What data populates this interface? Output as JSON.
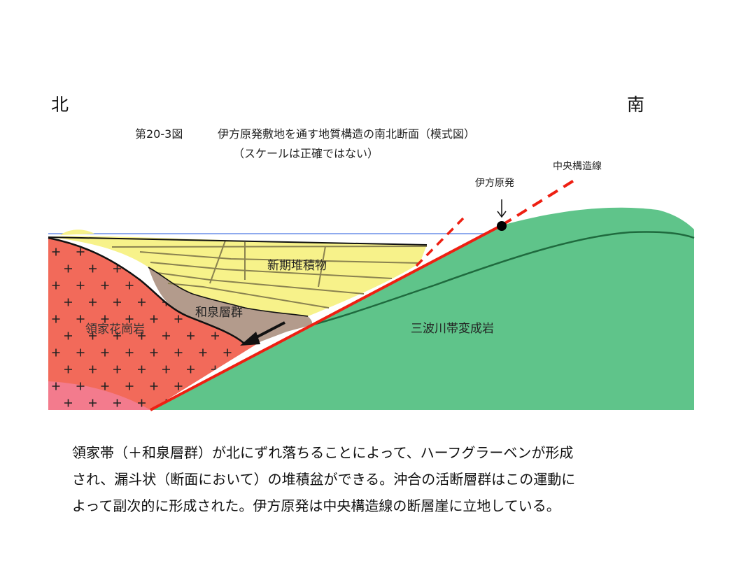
{
  "directions": {
    "north": "北",
    "south": "南"
  },
  "figure": {
    "number": "第20-3図",
    "title": "伊方原発敷地を通す地質構造の南北断面（模式図）",
    "subtitle": "（スケールは正確ではない）"
  },
  "labels": {
    "mtl": "中央構造線",
    "ikata": "伊方原発",
    "new_sediments": "新期堆積物",
    "izumi": "和泉層群",
    "ryoke": "領家花崗岩",
    "sanbagawa": "三波川帯変成岩"
  },
  "colors": {
    "granite": "#f26a5a",
    "sediments": "#f7f28a",
    "izumi": "#b39b8c",
    "sanbagawa": "#5fc48a",
    "fault": "#ee1f12",
    "sea_line": "#6a8ee8"
  },
  "caption": [
    "領家帯（＋和泉層群）が北にずれ落ちることによって、ハーフグラーベンが形成",
    "され、漏斗状（断面において）の堆積盆ができる。沖合の活断層群はこの運動に",
    "よって副次的に形成された。伊方原発は中央構造線の断層崖に立地している。"
  ]
}
